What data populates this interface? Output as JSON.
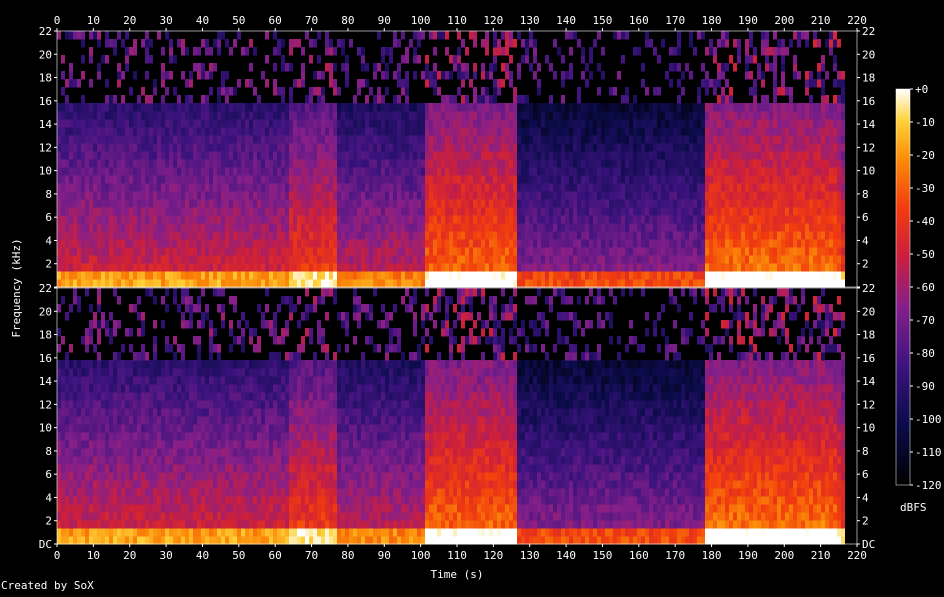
{
  "chart_data": {
    "type": "heatmap",
    "subtype": "spectrogram",
    "channels": 2,
    "xlabel": "Time (s)",
    "ylabel": "Frequency (kHz)",
    "x_ticks": [
      0,
      10,
      20,
      30,
      40,
      50,
      60,
      70,
      80,
      90,
      100,
      110,
      120,
      130,
      140,
      150,
      160,
      170,
      180,
      190,
      200,
      210,
      220
    ],
    "xlim": [
      0,
      220
    ],
    "y_ticks": [
      "DC",
      "2",
      "4",
      "6",
      "8",
      "10",
      "12",
      "14",
      "16",
      "18",
      "20",
      "22"
    ],
    "ylim_khz": [
      0,
      22
    ],
    "colorbar": {
      "label": "dBFS",
      "ticks": [
        "+0",
        "-10",
        "-20",
        "-30",
        "-40",
        "-50",
        "-60",
        "-70",
        "-80",
        "-90",
        "-100",
        "-110",
        "-120"
      ],
      "range_db": [
        -120,
        0
      ]
    },
    "content_cutoff_khz": 16,
    "audio_end_s": 218,
    "sections": [
      {
        "start_s": 0,
        "end_s": 63,
        "level": 0.62
      },
      {
        "start_s": 63,
        "end_s": 76,
        "level": 0.72
      },
      {
        "start_s": 76,
        "end_s": 101,
        "level": 0.58
      },
      {
        "start_s": 101,
        "end_s": 126,
        "level": 0.8
      },
      {
        "start_s": 126,
        "end_s": 178,
        "level": 0.48
      },
      {
        "start_s": 178,
        "end_s": 216,
        "level": 0.82
      }
    ],
    "grid": false
  },
  "credit": "Created by SoX",
  "colors": {
    "background": "#000000",
    "axis": "#ffffff"
  }
}
